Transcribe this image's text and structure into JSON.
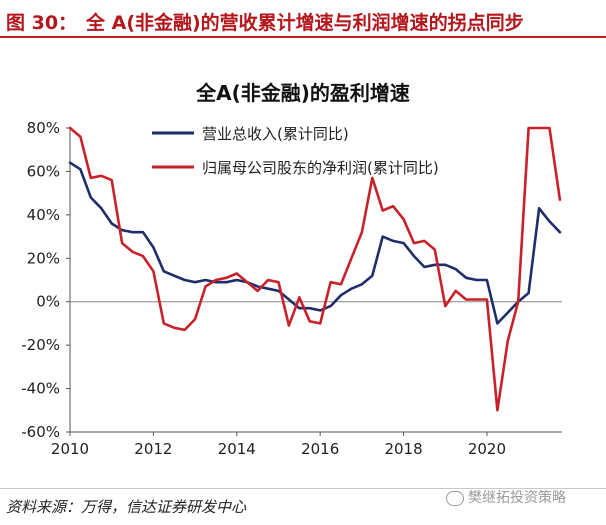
{
  "figure": {
    "label": "图 30：",
    "title": "全 A(非金融)的营收累计增速与利润增速的拐点同步",
    "source": "资料来源：万得，信达证券研发中心",
    "watermark": "樊继拓投资策略"
  },
  "chart_data": {
    "type": "line",
    "title": "全A(非金融)的盈利增速",
    "x_ticks": [
      "2010",
      "2012",
      "2014",
      "2016",
      "2018",
      "2020"
    ],
    "x_range": [
      2010,
      2021.8
    ],
    "y_range": [
      -60,
      80
    ],
    "y_ticks": [
      -60,
      -40,
      -20,
      0,
      20,
      40,
      60,
      80
    ],
    "y_tick_labels": [
      "-60%",
      "-40%",
      "-20%",
      "0%",
      "20%",
      "40%",
      "60%",
      "80%"
    ],
    "grid": false,
    "legend_position": "top-left",
    "series": [
      {
        "name": "营业总收入(累计同比)",
        "color": "#1f2d6b",
        "points": [
          [
            2010.0,
            64
          ],
          [
            2010.25,
            61
          ],
          [
            2010.5,
            48
          ],
          [
            2010.75,
            43
          ],
          [
            2011.0,
            36
          ],
          [
            2011.25,
            33
          ],
          [
            2011.5,
            32
          ],
          [
            2011.75,
            32
          ],
          [
            2012.0,
            25
          ],
          [
            2012.25,
            14
          ],
          [
            2012.5,
            12
          ],
          [
            2012.75,
            10
          ],
          [
            2013.0,
            9
          ],
          [
            2013.25,
            10
          ],
          [
            2013.5,
            9
          ],
          [
            2013.75,
            9
          ],
          [
            2014.0,
            10
          ],
          [
            2014.25,
            9
          ],
          [
            2014.5,
            7
          ],
          [
            2014.75,
            6
          ],
          [
            2015.0,
            5
          ],
          [
            2015.25,
            1
          ],
          [
            2015.5,
            -3
          ],
          [
            2015.75,
            -3
          ],
          [
            2016.0,
            -4
          ],
          [
            2016.25,
            -2
          ],
          [
            2016.5,
            3
          ],
          [
            2016.75,
            6
          ],
          [
            2017.0,
            8
          ],
          [
            2017.25,
            12
          ],
          [
            2017.5,
            30
          ],
          [
            2017.75,
            28
          ],
          [
            2018.0,
            27
          ],
          [
            2018.25,
            21
          ],
          [
            2018.5,
            16
          ],
          [
            2018.75,
            17
          ],
          [
            2019.0,
            17
          ],
          [
            2019.25,
            15
          ],
          [
            2019.5,
            11
          ],
          [
            2019.75,
            10
          ],
          [
            2020.0,
            10
          ],
          [
            2020.25,
            -10
          ],
          [
            2020.5,
            -5
          ],
          [
            2020.75,
            0
          ],
          [
            2021.0,
            4
          ],
          [
            2021.25,
            43
          ],
          [
            2021.5,
            37
          ],
          [
            2021.75,
            32
          ]
        ]
      },
      {
        "name": "归属母公司股东的净利润(累计同比)",
        "color": "#c9212a",
        "points": [
          [
            2010.0,
            80
          ],
          [
            2010.25,
            76
          ],
          [
            2010.5,
            57
          ],
          [
            2010.75,
            58
          ],
          [
            2011.0,
            56
          ],
          [
            2011.25,
            27
          ],
          [
            2011.5,
            23
          ],
          [
            2011.75,
            21
          ],
          [
            2012.0,
            14
          ],
          [
            2012.25,
            -10
          ],
          [
            2012.5,
            -12
          ],
          [
            2012.75,
            -13
          ],
          [
            2013.0,
            -8
          ],
          [
            2013.25,
            7
          ],
          [
            2013.5,
            10
          ],
          [
            2013.75,
            11
          ],
          [
            2014.0,
            13
          ],
          [
            2014.25,
            9
          ],
          [
            2014.5,
            5
          ],
          [
            2014.75,
            10
          ],
          [
            2015.0,
            9
          ],
          [
            2015.25,
            -11
          ],
          [
            2015.5,
            2
          ],
          [
            2015.75,
            -9
          ],
          [
            2016.0,
            -10
          ],
          [
            2016.25,
            9
          ],
          [
            2016.5,
            8
          ],
          [
            2016.75,
            20
          ],
          [
            2017.0,
            32
          ],
          [
            2017.25,
            57
          ],
          [
            2017.5,
            42
          ],
          [
            2017.75,
            44
          ],
          [
            2018.0,
            38
          ],
          [
            2018.25,
            27
          ],
          [
            2018.5,
            28
          ],
          [
            2018.75,
            24
          ],
          [
            2019.0,
            -2
          ],
          [
            2019.25,
            5
          ],
          [
            2019.5,
            1
          ],
          [
            2019.75,
            1
          ],
          [
            2020.0,
            1
          ],
          [
            2020.25,
            -50
          ],
          [
            2020.5,
            -18
          ],
          [
            2020.75,
            0
          ],
          [
            2021.0,
            80
          ],
          [
            2021.25,
            80
          ],
          [
            2021.5,
            80
          ],
          [
            2021.75,
            47
          ]
        ]
      }
    ]
  }
}
